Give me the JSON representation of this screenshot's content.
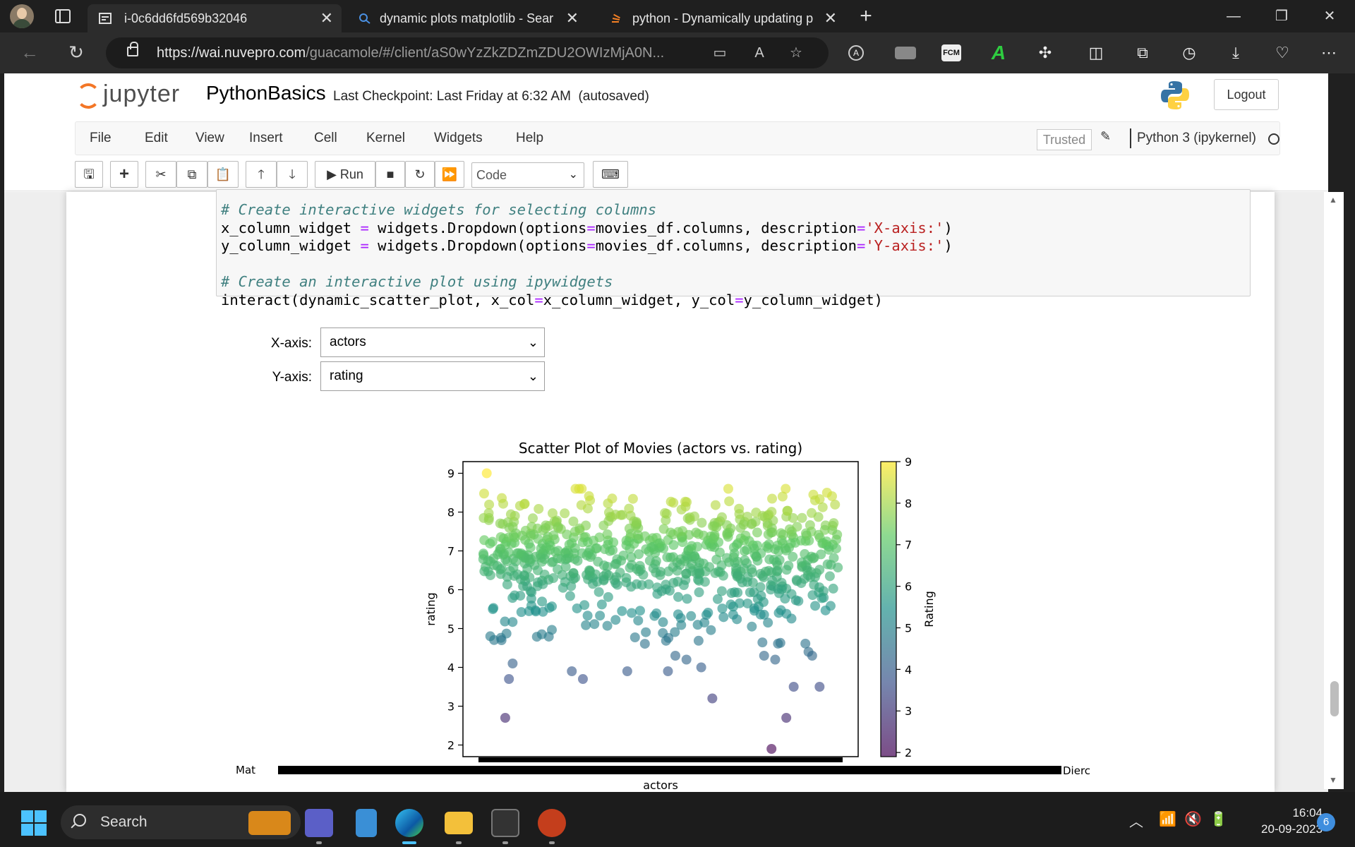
{
  "browser": {
    "tabs": [
      {
        "title": "i-0c6dd6fd569b32046",
        "active": true
      },
      {
        "title": "dynamic plots matplotlib - Search",
        "active": false
      },
      {
        "title": "python - Dynamically updating p",
        "active": false
      }
    ],
    "url_host": "https://wai.nuvepro.com",
    "url_path": "/guacamole/#/client/aS0wYzZkZDZmZDU2OWIzMjA0N..."
  },
  "jupyter": {
    "logo_text": "jupyter",
    "notebook_name": "PythonBasics",
    "checkpoint": "Last Checkpoint: Last Friday at 6:32 AM",
    "autosaved": "(autosaved)",
    "logout": "Logout",
    "menu": [
      "File",
      "Edit",
      "View",
      "Insert",
      "Cell",
      "Kernel",
      "Widgets",
      "Help"
    ],
    "trusted": "Trusted",
    "kernel": "Python 3 (ipykernel)",
    "toolbar": {
      "run_label": "Run",
      "cell_type": "Code"
    }
  },
  "code_lines": [
    {
      "kind": "comment",
      "text": "# Create interactive widgets for selecting columns"
    },
    {
      "kind": "dropdown",
      "var": "x_column_widget",
      "desc": "'X-axis:'"
    },
    {
      "kind": "dropdown",
      "var": "y_column_widget",
      "desc": "'Y-axis:'"
    },
    {
      "kind": "blank",
      "text": ""
    },
    {
      "kind": "comment",
      "text": "# Create an interactive plot using ipywidgets"
    },
    {
      "kind": "interact",
      "text": "interact(dynamic_scatter_plot, x_col=x_column_widget, y_col=y_column_widget)"
    }
  ],
  "widgets": {
    "x_label": "X-axis:",
    "x_value": "actors",
    "y_label": "Y-axis:",
    "y_value": "rating"
  },
  "chart_data": {
    "type": "scatter",
    "title": "Scatter Plot of Movies (actors vs. rating)",
    "xlabel": "actors",
    "ylabel": "rating",
    "ylim": [
      1.7,
      9.3
    ],
    "y_ticks": [
      "2",
      "3",
      "4",
      "5",
      "6",
      "7",
      "8",
      "9"
    ],
    "colorbar": {
      "label": "Rating",
      "ticks": [
        "2",
        "3",
        "4",
        "5",
        "6",
        "7",
        "8",
        "9"
      ],
      "range": [
        1.9,
        9.0
      ],
      "colormap": "viridis"
    },
    "x_tick_first": "Mat",
    "x_tick_last": "Dierc",
    "note": "x axis is categorical (actor names, overlapping/unreadable)",
    "low_rating_points": [
      {
        "x": 0.08,
        "y": 2.7
      },
      {
        "x": 0.09,
        "y": 3.7
      },
      {
        "x": 0.1,
        "y": 4.1
      },
      {
        "x": 0.07,
        "y": 4.7
      },
      {
        "x": 0.26,
        "y": 3.9
      },
      {
        "x": 0.29,
        "y": 3.7
      },
      {
        "x": 0.41,
        "y": 3.9
      },
      {
        "x": 0.52,
        "y": 3.9
      },
      {
        "x": 0.54,
        "y": 4.3
      },
      {
        "x": 0.57,
        "y": 4.2
      },
      {
        "x": 0.61,
        "y": 4.0
      },
      {
        "x": 0.64,
        "y": 3.2
      },
      {
        "x": 0.8,
        "y": 1.9
      },
      {
        "x": 0.84,
        "y": 2.7
      },
      {
        "x": 0.86,
        "y": 3.5
      },
      {
        "x": 0.93,
        "y": 3.5
      },
      {
        "x": 0.81,
        "y": 4.2
      },
      {
        "x": 0.78,
        "y": 4.3
      },
      {
        "x": 0.9,
        "y": 4.4
      },
      {
        "x": 0.91,
        "y": 4.3
      },
      {
        "x": 0.03,
        "y": 9.0
      },
      {
        "x": 0.27,
        "y": 8.6
      },
      {
        "x": 0.83,
        "y": 8.4
      },
      {
        "x": 0.95,
        "y": 8.5
      }
    ]
  },
  "taskbar": {
    "search": "Search",
    "time": "16:04",
    "date": "20-09-2023",
    "notifications": "6"
  },
  "colors": {
    "jupyter_orange": "#f37626",
    "browser_bg": "#1f1f1f",
    "code_bg": "#f7f7f7",
    "comment": "#408080",
    "string": "#ba2121"
  }
}
